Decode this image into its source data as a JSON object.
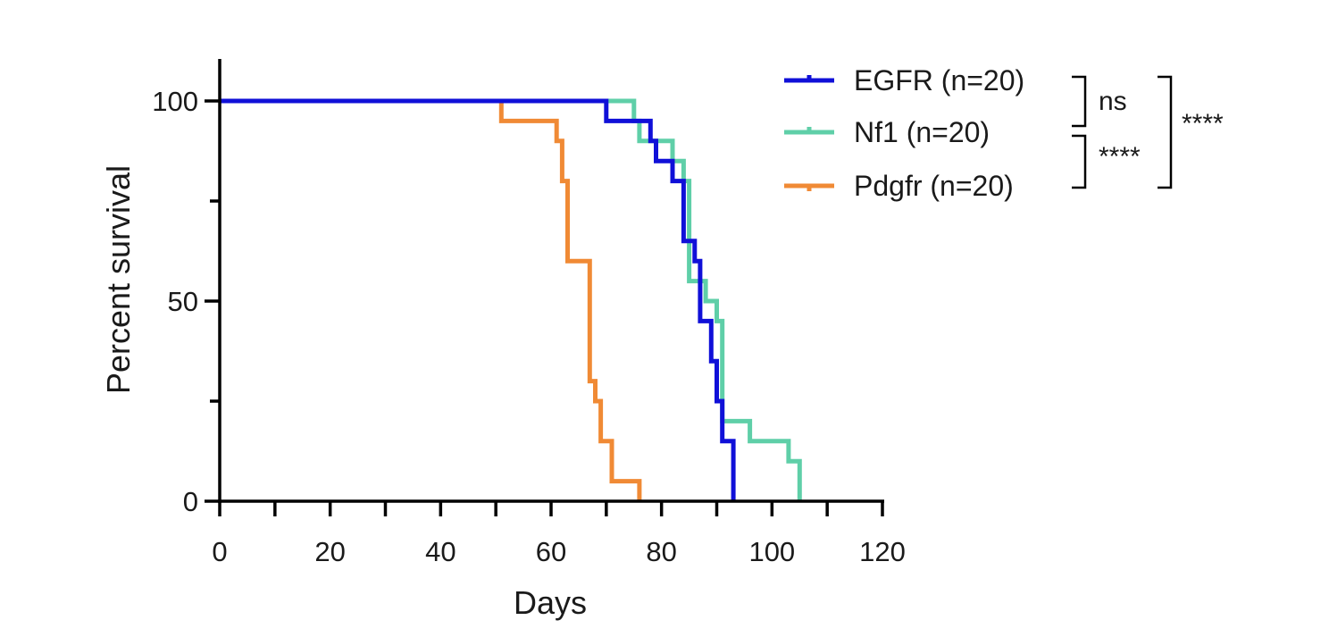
{
  "chart_data": {
    "type": "line",
    "step": true,
    "title": "",
    "xlabel": "Days",
    "ylabel": "Percent survival",
    "xlim": [
      0,
      120
    ],
    "ylim": [
      0,
      100
    ],
    "x_ticks": [
      0,
      20,
      40,
      60,
      80,
      100,
      120
    ],
    "x_minor_ticks": [
      10,
      30,
      50,
      70,
      90,
      110
    ],
    "y_ticks": [
      0,
      50,
      100
    ],
    "y_minor_ticks": [
      25,
      75
    ],
    "grid": false,
    "legend_position": "top-right",
    "series": [
      {
        "name": "EGFR (n=20)",
        "color": "#1010d8",
        "points": [
          [
            0,
            100
          ],
          [
            70,
            100
          ],
          [
            70,
            95
          ],
          [
            78,
            95
          ],
          [
            78,
            90
          ],
          [
            79,
            90
          ],
          [
            79,
            85
          ],
          [
            82,
            85
          ],
          [
            82,
            80
          ],
          [
            83,
            80
          ],
          [
            83,
            80
          ],
          [
            84,
            80
          ],
          [
            84,
            65
          ],
          [
            86,
            65
          ],
          [
            86,
            60
          ],
          [
            87,
            60
          ],
          [
            87,
            45
          ],
          [
            89,
            45
          ],
          [
            89,
            35
          ],
          [
            90,
            35
          ],
          [
            90,
            25
          ],
          [
            91,
            25
          ],
          [
            91,
            15
          ],
          [
            93,
            15
          ],
          [
            93,
            0
          ]
        ]
      },
      {
        "name": "Nf1 (n=20)",
        "color": "#5fcfa8",
        "points": [
          [
            0,
            100
          ],
          [
            75,
            100
          ],
          [
            75,
            95
          ],
          [
            76,
            95
          ],
          [
            76,
            90
          ],
          [
            82,
            90
          ],
          [
            82,
            85
          ],
          [
            84,
            85
          ],
          [
            84,
            80
          ],
          [
            85,
            80
          ],
          [
            85,
            65
          ],
          [
            85,
            65
          ],
          [
            85,
            55
          ],
          [
            87,
            55
          ],
          [
            87,
            55
          ],
          [
            88,
            55
          ],
          [
            88,
            50
          ],
          [
            90,
            50
          ],
          [
            90,
            45
          ],
          [
            91,
            45
          ],
          [
            91,
            20
          ],
          [
            96,
            20
          ],
          [
            96,
            15
          ],
          [
            103,
            15
          ],
          [
            103,
            10
          ],
          [
            105,
            10
          ],
          [
            105,
            0
          ]
        ]
      },
      {
        "name": "Pdgfr  (n=20)",
        "color": "#f08a35",
        "points": [
          [
            0,
            100
          ],
          [
            51,
            100
          ],
          [
            51,
            95
          ],
          [
            61,
            95
          ],
          [
            61,
            90
          ],
          [
            62,
            90
          ],
          [
            62,
            80
          ],
          [
            63,
            80
          ],
          [
            63,
            60
          ],
          [
            67,
            60
          ],
          [
            67,
            30
          ],
          [
            68,
            30
          ],
          [
            68,
            25
          ],
          [
            69,
            25
          ],
          [
            69,
            15
          ],
          [
            71,
            15
          ],
          [
            71,
            5
          ],
          [
            76,
            5
          ],
          [
            76,
            0
          ]
        ]
      }
    ],
    "annotations": [
      {
        "label": "ns",
        "groups": [
          "EGFR (n=20)",
          "Nf1 (n=20)"
        ]
      },
      {
        "label": "****",
        "groups": [
          "Nf1 (n=20)",
          "Pdgfr  (n=20)"
        ]
      },
      {
        "label": "****",
        "groups": [
          "EGFR (n=20)",
          "Pdgfr  (n=20)"
        ]
      }
    ]
  }
}
